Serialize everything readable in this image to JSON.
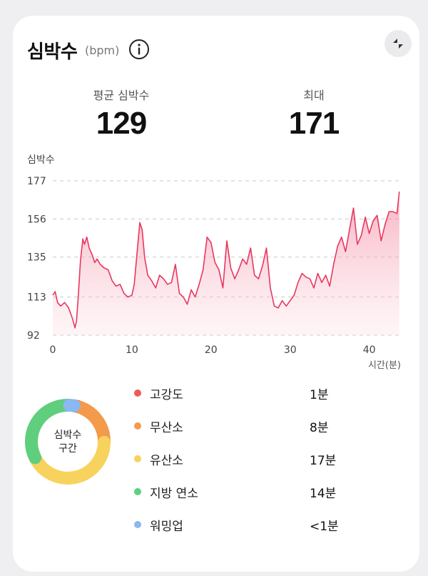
{
  "header": {
    "title": "심박수",
    "unit": "(bpm)"
  },
  "stats": {
    "average_label": "평균 심박수",
    "average_value": "129",
    "max_label": "최대",
    "max_value": "171"
  },
  "chart_data": {
    "type": "area",
    "ylabel": "심박수",
    "xlabel": "시간(분)",
    "ylim": [
      92,
      177
    ],
    "xlim": [
      0,
      44
    ],
    "yticks": [
      "177",
      "156",
      "135",
      "113",
      "92"
    ],
    "xticks": [
      "0",
      "10",
      "20",
      "30",
      "40"
    ],
    "grid": "horizontal-dashed",
    "color": "#e8375d",
    "x": [
      0,
      0.3,
      0.6,
      1,
      1.5,
      2,
      2.5,
      2.8,
      3,
      3.2,
      3.5,
      3.8,
      4,
      4.3,
      4.6,
      5,
      5.3,
      5.6,
      6,
      6.5,
      7,
      7.5,
      8,
      8.5,
      9,
      9.5,
      10,
      10.3,
      10.6,
      11,
      11.3,
      11.6,
      12,
      12.5,
      13,
      13.5,
      14,
      14.5,
      15,
      15.5,
      16,
      16.5,
      17,
      17.5,
      18,
      18.5,
      19,
      19.5,
      20,
      20.5,
      21,
      21.5,
      22,
      22.5,
      23,
      23.5,
      24,
      24.5,
      25,
      25.5,
      26,
      26.5,
      27,
      27.5,
      28,
      28.5,
      29,
      29.5,
      30,
      30.5,
      31,
      31.5,
      32,
      32.5,
      33,
      33.5,
      34,
      34.5,
      35,
      35.5,
      36,
      36.5,
      37,
      37.5,
      38,
      38.5,
      39,
      39.5,
      40,
      40.5,
      41,
      41.5,
      42,
      42.5,
      43,
      43.5,
      43.8
    ],
    "y": [
      114,
      116,
      110,
      108,
      110,
      107,
      101,
      96,
      100,
      112,
      133,
      145,
      142,
      146,
      140,
      136,
      132,
      134,
      131,
      129,
      128,
      122,
      119,
      120,
      115,
      113,
      114,
      120,
      135,
      154,
      150,
      135,
      125,
      122,
      118,
      125,
      123,
      120,
      121,
      131,
      115,
      113,
      109,
      117,
      113,
      120,
      128,
      146,
      143,
      132,
      128,
      118,
      144,
      129,
      123,
      128,
      134,
      131,
      140,
      125,
      123,
      130,
      140,
      118,
      108,
      107,
      111,
      108,
      111,
      114,
      121,
      126,
      124,
      123,
      118,
      126,
      121,
      125,
      119,
      131,
      141,
      146,
      138,
      150,
      162,
      142,
      147,
      157,
      148,
      155,
      158,
      144,
      153,
      160,
      160,
      159,
      171
    ]
  },
  "zones": {
    "title_line1": "심박수",
    "title_line2": "구간",
    "items": [
      {
        "name": "고강도",
        "time": "1분",
        "color": "#ee5b57",
        "share": 0.025
      },
      {
        "name": "무산소",
        "time": "8분",
        "color": "#f39a4b",
        "share": 0.2
      },
      {
        "name": "유산소",
        "time": "17분",
        "color": "#f7d25c",
        "share": 0.425
      },
      {
        "name": "지방 연소",
        "time": "14분",
        "color": "#5fcf7d",
        "share": 0.33
      },
      {
        "name": "워밍업",
        "time": "<1분",
        "color": "#8ab8f0",
        "share": 0.02
      }
    ]
  }
}
